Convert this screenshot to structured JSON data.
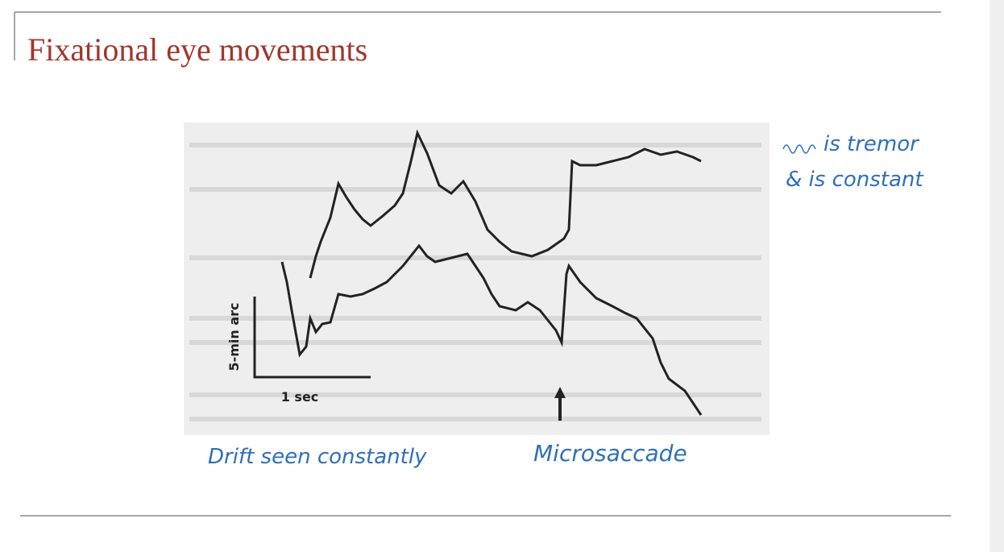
{
  "title": "Fixational eye movements",
  "figure": {
    "y_scale_label": "5-min arc",
    "x_scale_label": "1 sec"
  },
  "annotations": {
    "drift": "Drift seen constantly",
    "microsaccade": "Microsaccade",
    "tremor": "is tremor",
    "constant": "& is constant"
  }
}
